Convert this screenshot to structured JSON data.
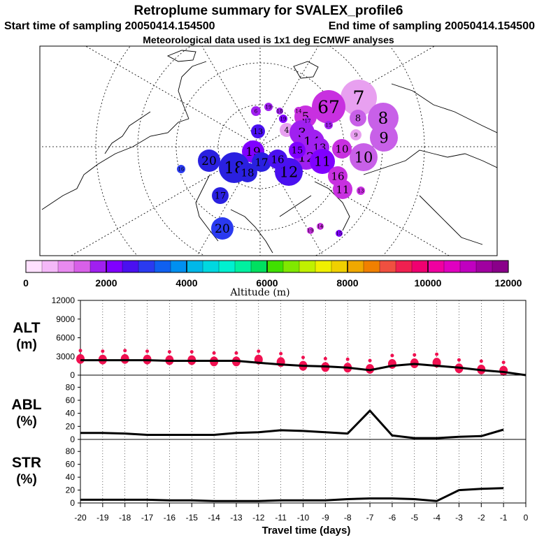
{
  "header": {
    "title": "Retroplume summary for SVALEX_profile6",
    "start_label": "Start time of sampling 20050414.154500",
    "end_label": "End time of sampling 20050414.154500",
    "met_label": "Meteorological data used is 1x1 deg ECMWF analyses"
  },
  "colorbar": {
    "label": "Altitude (m)",
    "ticks": [
      "0",
      "2000",
      "4000",
      "6000",
      "8000",
      "10000",
      "12000"
    ],
    "colors": [
      "#ffe0ff",
      "#f4b8f8",
      "#e88af0",
      "#d860e8",
      "#a020f0",
      "#8000ff",
      "#4a10f0",
      "#2a3af0",
      "#1060f0",
      "#0090f0",
      "#00b8e8",
      "#00d8e0",
      "#00f0d0",
      "#00f0a0",
      "#00e060",
      "#40e000",
      "#80e800",
      "#c0f000",
      "#f0f000",
      "#f0d000",
      "#f0a800",
      "#f08000",
      "#f05040",
      "#f02050",
      "#f00070",
      "#f000a0",
      "#e000c0",
      "#c000c0",
      "#a000a0",
      "#8a008a"
    ]
  },
  "map": {
    "markers": [
      {
        "label": "7",
        "color": "#e8a0f0"
      },
      {
        "label": "67",
        "color": "#c830e0"
      },
      {
        "label": "5",
        "color": "#c830e0"
      },
      {
        "label": "8",
        "color": "#c860e8"
      },
      {
        "label": "8",
        "color": "#c860e8"
      },
      {
        "label": "9",
        "color": "#c860e8"
      },
      {
        "label": "9",
        "color": "#e8a0f0"
      },
      {
        "label": "10",
        "color": "#c860e8"
      },
      {
        "label": "10",
        "color": "#c830e0"
      },
      {
        "label": "4",
        "color": "#e8a0f0"
      },
      {
        "label": "3",
        "color": "#a020f0"
      },
      {
        "label": "14",
        "color": "#a020f0"
      },
      {
        "label": "13",
        "color": "#a020f0"
      },
      {
        "label": "12",
        "color": "#a020f0"
      },
      {
        "label": "12",
        "color": "#4a10f0"
      },
      {
        "label": "11",
        "color": "#8000ff"
      },
      {
        "label": "11",
        "color": "#c830e0"
      },
      {
        "label": "16",
        "color": "#c830e0"
      },
      {
        "label": "13",
        "color": "#4a10f0"
      },
      {
        "label": "13",
        "color": "#c830e0"
      },
      {
        "label": "19",
        "color": "#8000ff"
      },
      {
        "label": "20",
        "color": "#2a20e0"
      },
      {
        "label": "18",
        "color": "#2a20e0"
      },
      {
        "label": "17",
        "color": "#2a20e0"
      },
      {
        "label": "18",
        "color": "#2a20e0"
      },
      {
        "label": "16",
        "color": "#4a10f0"
      },
      {
        "label": "15",
        "color": "#8000ff"
      },
      {
        "label": "19",
        "color": "#8000ff"
      },
      {
        "label": "17",
        "color": "#2a20e0"
      },
      {
        "label": "16",
        "color": "#2a3af0"
      },
      {
        "label": "20",
        "color": "#2a3af0"
      },
      {
        "label": "19",
        "color": "#c830e0"
      },
      {
        "label": "14",
        "color": "#c830e0"
      },
      {
        "label": "15",
        "color": "#8000ff"
      },
      {
        "label": "6",
        "color": "#a020f0"
      },
      {
        "label": "19",
        "color": "#a020f0"
      },
      {
        "label": "18",
        "color": "#a020f0"
      },
      {
        "label": "14",
        "color": "#c830e0"
      },
      {
        "label": "15",
        "color": "#a020f0"
      },
      {
        "label": "17",
        "color": "#a020f0"
      }
    ]
  },
  "chart_data": [
    {
      "type": "line",
      "title": "",
      "ylabel": "ALT (m)",
      "xlabel": "",
      "x": [
        -20,
        -19,
        -18,
        -17,
        -16,
        -15,
        -14,
        -13,
        -12,
        -11,
        -10,
        -9,
        -8,
        -7,
        -6,
        -5,
        -4,
        -3,
        -2,
        -1,
        0
      ],
      "series": [
        {
          "name": "altitude",
          "values": [
            2400,
            2400,
            2400,
            2400,
            2300,
            2300,
            2300,
            2300,
            2000,
            1700,
            1500,
            1400,
            1200,
            800,
            1500,
            1800,
            1500,
            1200,
            800,
            500,
            0
          ]
        }
      ],
      "scatter_values": [
        2600,
        2500,
        2600,
        2500,
        2400,
        2400,
        2200,
        2200,
        2500,
        2100,
        1500,
        1300,
        1200,
        1000,
        1800,
        1900,
        2000,
        1100,
        900,
        700
      ],
      "ylim": [
        0,
        12000
      ],
      "yticks": [
        "0",
        "3000",
        "6000",
        "9000",
        "12000"
      ]
    },
    {
      "type": "line",
      "ylabel": "ABL (%)",
      "x": [
        -20,
        -19,
        -18,
        -17,
        -16,
        -15,
        -14,
        -13,
        -12,
        -11,
        -10,
        -9,
        -8,
        -7,
        -6,
        -5,
        -4,
        -3,
        -2,
        -1
      ],
      "series": [
        {
          "name": "ABL",
          "values": [
            10,
            10,
            9,
            7,
            7,
            7,
            7,
            10,
            11,
            14,
            13,
            11,
            9,
            44,
            6,
            2,
            2,
            4,
            5,
            15
          ]
        }
      ],
      "ylim": [
        0,
        90
      ],
      "yticks": [
        "0",
        "20",
        "40",
        "60",
        "80"
      ]
    },
    {
      "type": "line",
      "ylabel": "STR (%)",
      "xlabel": "Travel time (days)",
      "x": [
        -20,
        -19,
        -18,
        -17,
        -16,
        -15,
        -14,
        -13,
        -12,
        -11,
        -10,
        -9,
        -8,
        -7,
        -6,
        -5,
        -4,
        -3,
        -2,
        -1
      ],
      "series": [
        {
          "name": "STR",
          "values": [
            5,
            5,
            5,
            5,
            4,
            4,
            3,
            3,
            3,
            4,
            4,
            4,
            6,
            7,
            7,
            6,
            3,
            20,
            22,
            23
          ]
        }
      ],
      "ylim": [
        0,
        90
      ],
      "yticks": [
        "0",
        "20",
        "40",
        "60",
        "80"
      ],
      "xticks": [
        "-20",
        "-19",
        "-18",
        "-17",
        "-16",
        "-15",
        "-14",
        "-13",
        "-12",
        "-11",
        "-10",
        "-9",
        "-8",
        "-7",
        "-6",
        "-5",
        "-4",
        "-3",
        "-2",
        "-1",
        "0"
      ]
    }
  ],
  "panels": {
    "alt_label_1": "ALT",
    "alt_label_2": "(m)",
    "abl_label_1": "ABL",
    "abl_label_2": "(%)",
    "str_label_1": "STR",
    "str_label_2": "(%)",
    "marker_color": "#f01050"
  }
}
